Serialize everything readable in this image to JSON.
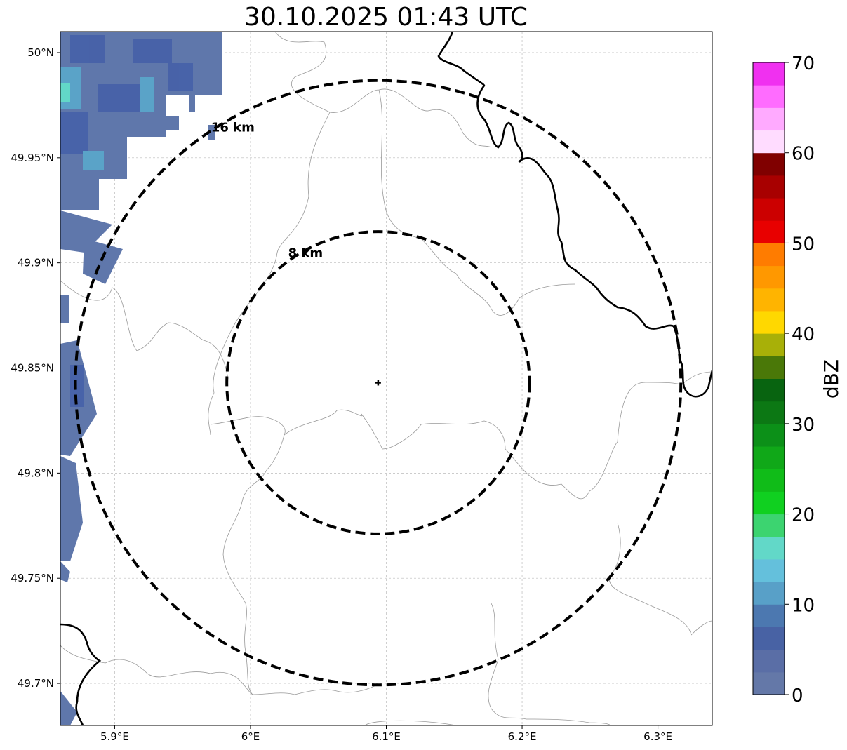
{
  "title": "30.10.2025 01:43 UTC",
  "map": {
    "lon_range": [
      5.86,
      6.34
    ],
    "lat_range": [
      49.68,
      50.01
    ],
    "x_ticks": [
      {
        "value": 5.9,
        "label": "5.9°E"
      },
      {
        "value": 6.0,
        "label": "6°E"
      },
      {
        "value": 6.1,
        "label": "6.1°E"
      },
      {
        "value": 6.2,
        "label": "6.2°E"
      },
      {
        "value": 6.3,
        "label": "6.3°E"
      }
    ],
    "y_ticks": [
      {
        "value": 50.0,
        "label": "50°N"
      },
      {
        "value": 49.95,
        "label": "49.95°N"
      },
      {
        "value": 49.9,
        "label": "49.9°N"
      },
      {
        "value": 49.85,
        "label": "49.85°N"
      },
      {
        "value": 49.8,
        "label": "49.8°N"
      },
      {
        "value": 49.75,
        "label": "49.75°N"
      },
      {
        "value": 49.7,
        "label": "49.7°N"
      }
    ],
    "grid": true,
    "radar_site": {
      "lon": 6.094,
      "lat": 49.843
    },
    "range_rings": [
      {
        "radius_km": 8,
        "label": "8 km"
      },
      {
        "radius_km": 16,
        "label": "16 km"
      }
    ],
    "colors": {
      "rings": "#000000",
      "borders": "#000000",
      "admin_lines": "#999999",
      "grid": "#bbbbbb"
    }
  },
  "colorbar": {
    "label": "dBZ",
    "tick_labels": [
      "0",
      "10",
      "20",
      "30",
      "40",
      "50",
      "60",
      "70"
    ],
    "min": 0,
    "max": 70,
    "step": 2.5,
    "colors": [
      "#6478a8",
      "#5a6ea6",
      "#4862a4",
      "#4c78b0",
      "#58a0c8",
      "#64c0dc",
      "#62d8c8",
      "#3cd470",
      "#10d020",
      "#10bc18",
      "#10a818",
      "#0c9018",
      "#0c7814",
      "#086410",
      "#4a7808",
      "#a8b008",
      "#ffd800",
      "#ffb400",
      "#ff9800",
      "#ff7c00",
      "#e80000",
      "#cc0000",
      "#a80000",
      "#800000",
      "#ffdcff",
      "#ffaaff",
      "#ff6cff",
      "#f030f0"
    ]
  }
}
